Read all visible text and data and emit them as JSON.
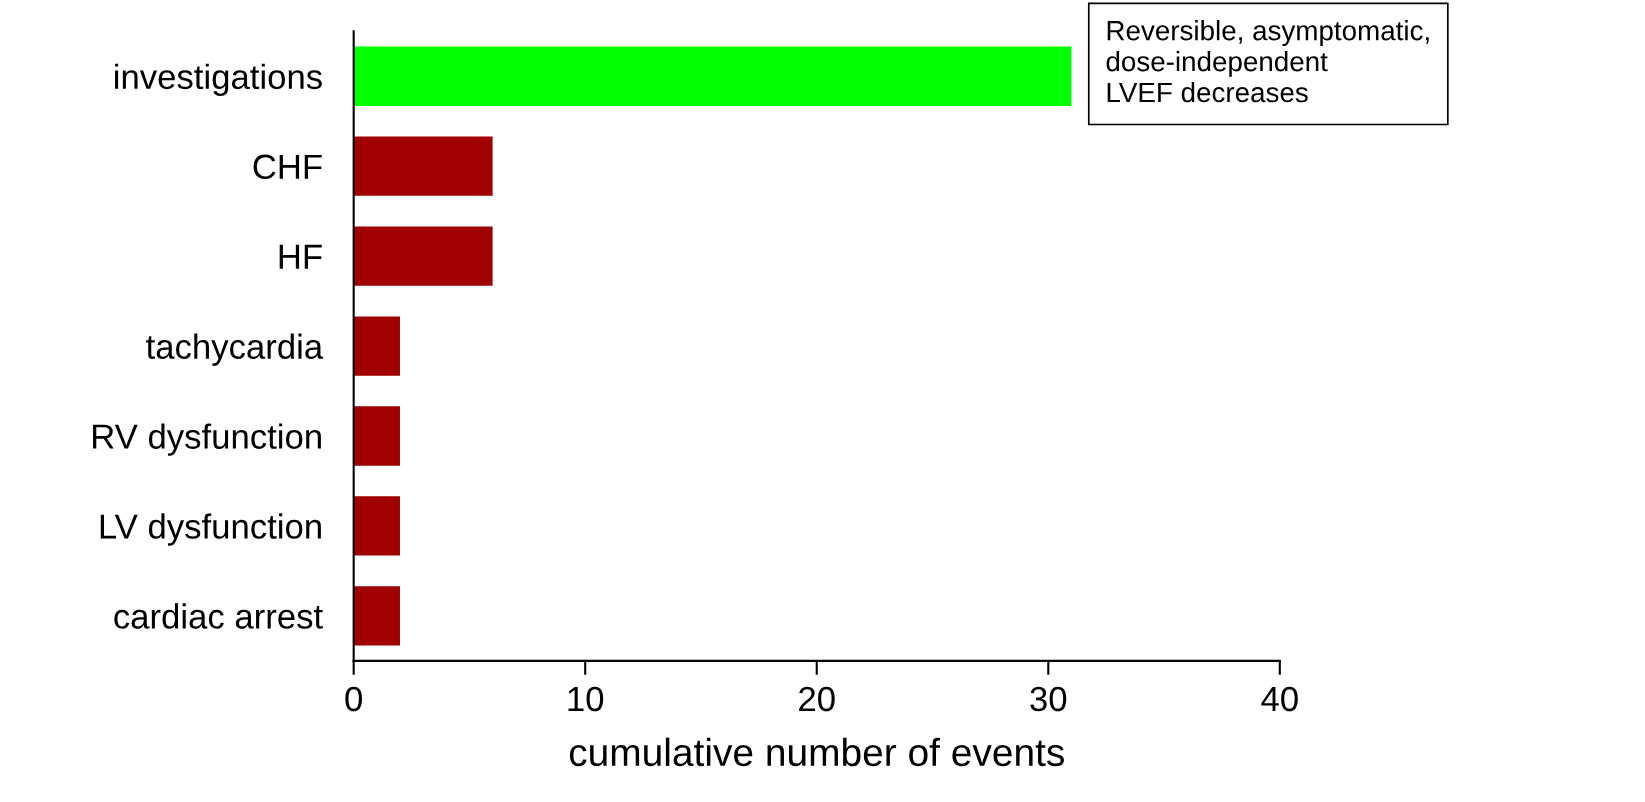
{
  "chart_data": {
    "type": "bar",
    "orientation": "horizontal",
    "categories": [
      "investigations",
      "CHF",
      "HF",
      "tachycardia",
      "RV dysfunction",
      "LV dysfunction",
      "cardiac arrest"
    ],
    "values": [
      31,
      6,
      6,
      2,
      2,
      2,
      2
    ],
    "colors": [
      "#00ff00",
      "#a00000",
      "#a00000",
      "#a00000",
      "#a00000",
      "#a00000",
      "#a00000"
    ],
    "xlim": [
      0,
      40
    ],
    "xticks": [
      0,
      10,
      20,
      30,
      40
    ],
    "xlabel": "cumulative number of events",
    "annotations": [
      "Reversible, asymptomatic,\ndose-independent\nLVEF decreases"
    ],
    "grid": false,
    "legend": false
  }
}
